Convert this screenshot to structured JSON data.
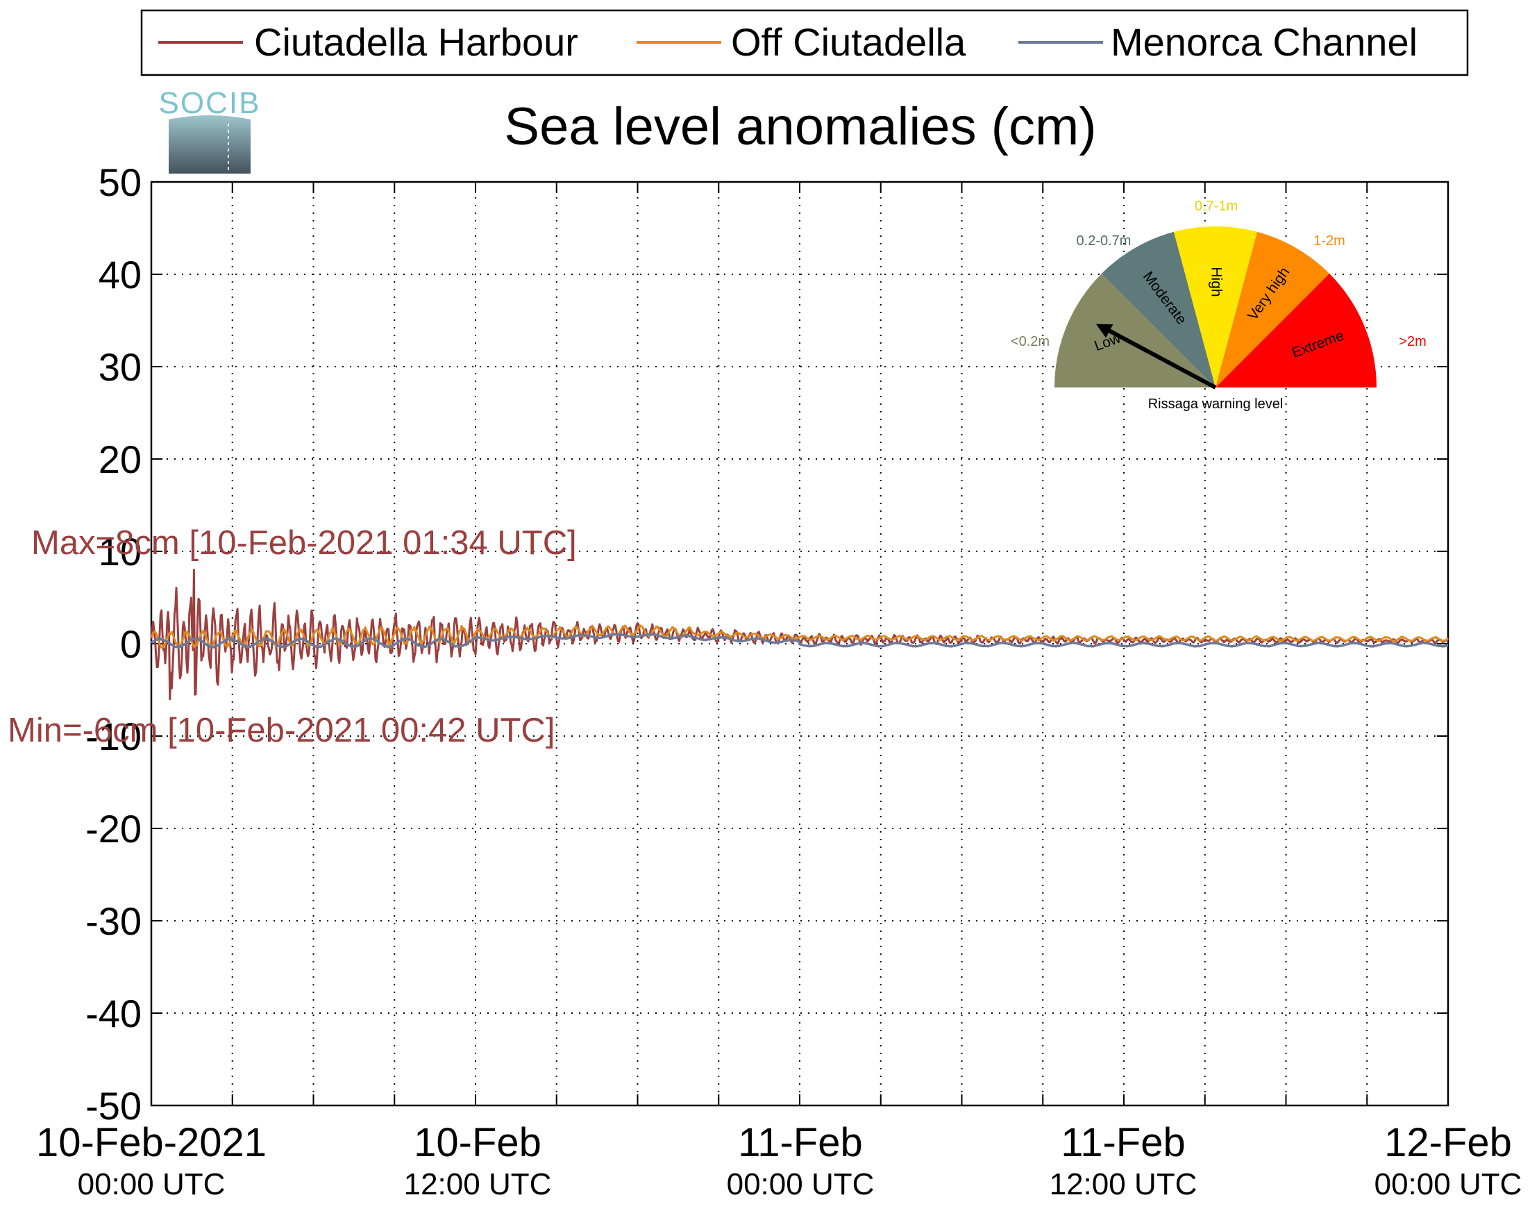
{
  "chart_data": {
    "type": "line",
    "title": "Sea level anomalies (cm)",
    "ylim": [
      -50,
      50
    ],
    "yticks": [
      "50",
      "40",
      "30",
      "20",
      "10",
      "0",
      "-10",
      "-20",
      "-30",
      "-40",
      "-50"
    ],
    "x_range_hours": [
      0,
      48
    ],
    "xtick_labels": [
      {
        "date": "10-Feb-2021",
        "time": "00:00 UTC"
      },
      {
        "date": "10-Feb",
        "time": "12:00 UTC"
      },
      {
        "date": "11-Feb",
        "time": "00:00 UTC"
      },
      {
        "date": "11-Feb",
        "time": "12:00 UTC"
      },
      {
        "date": "12-Feb",
        "time": "00:00 UTC"
      }
    ],
    "grid": true,
    "legend_position": "top",
    "series": [
      {
        "name": "Ciutadella Harbour",
        "color": "#9b3f3f",
        "envelope": [
          {
            "t": 0.0,
            "amp": 1.5
          },
          {
            "t": 0.5,
            "amp": 5.5
          },
          {
            "t": 1.5,
            "amp": 6.5
          },
          {
            "t": 3,
            "amp": 4
          },
          {
            "t": 5,
            "amp": 3.5
          },
          {
            "t": 8,
            "amp": 2.5
          },
          {
            "t": 11,
            "amp": 2.5
          },
          {
            "t": 13,
            "amp": 2
          },
          {
            "t": 16,
            "amp": 1.2
          },
          {
            "t": 20,
            "amp": 0.8
          },
          {
            "t": 24,
            "amp": 0.6
          },
          {
            "t": 36,
            "amp": 0.3
          },
          {
            "t": 48,
            "amp": 0.2
          }
        ]
      },
      {
        "name": "Off Ciutadella",
        "color": "#e08a1e"
      },
      {
        "name": "Menorca Channel",
        "color": "#6e7a99"
      }
    ],
    "annotations": {
      "max_label": "Max=8cm [10-Feb-2021 01:34 UTC]",
      "min_label": "Min=-6cm [10-Feb-2021 00:42 UTC]",
      "color": "#9b3f3f"
    }
  },
  "logo": {
    "text": "SOCIB"
  },
  "gauge": {
    "caption": "Rissaga warning level",
    "needle_level": "Low",
    "sectors": [
      {
        "name": "Low",
        "range": "<0.2m",
        "color": "#868a64",
        "label_color": "#7a7d58"
      },
      {
        "name": "Moderate",
        "range": "0.2-0.7m",
        "color": "#5e7a7a",
        "label_color": "#4f6b6b"
      },
      {
        "name": "High",
        "range": "0.7-1m",
        "color": "#ffe600",
        "label_color": "#e8d000"
      },
      {
        "name": "Very high",
        "range": "1-2m",
        "color": "#ff8a00",
        "label_color": "#ff8a00"
      },
      {
        "name": "Extreme",
        "range": ">2m",
        "color": "#ff0000",
        "label_color": "#ff0000"
      }
    ]
  }
}
